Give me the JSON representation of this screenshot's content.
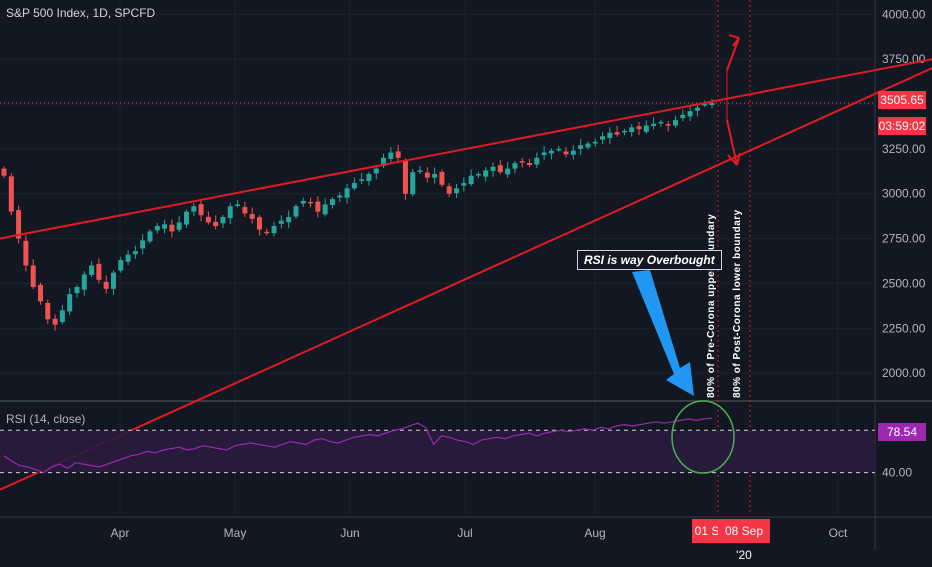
{
  "header": {
    "title": "S&P 500 Index, 1D, SPCFD"
  },
  "rsi_panel": {
    "title": "RSI (14, close)",
    "value_tag": "78.54",
    "level_label": "40.00"
  },
  "annotation": {
    "text": "RSI is way Overbought",
    "vertical_label_1": "80% of Pre-Corona upper boundary",
    "vertical_label_2": "80% of Post-Corona lower boundary"
  },
  "tags": {
    "last_price": "3505.65",
    "countdown": "03:59:02",
    "date_1": "01 S",
    "date_2": "08 Sep '20"
  },
  "colors": {
    "background": "#131722",
    "up": "#26a69a",
    "down": "#ef5350",
    "trendline": "#e01b24",
    "rsi_line": "#9c27b0",
    "arrow_blue": "#2196f3",
    "circle_green": "#4caf50"
  },
  "chart_data": [
    {
      "type": "candlestick",
      "y_ticks": [
        "4000.00",
        "3750.00",
        "3500.00",
        "3250.00",
        "3000.00",
        "2750.00",
        "2500.00",
        "2250.00",
        "2000.00"
      ],
      "ylim": [
        1850,
        4080
      ],
      "x_ticks": [
        "Apr",
        "May",
        "Jun",
        "Jul",
        "Aug",
        "Sep",
        "Oct"
      ],
      "closes": [
        3100,
        2900,
        2750,
        2600,
        2480,
        2400,
        2300,
        2270,
        2350,
        2440,
        2480,
        2550,
        2600,
        2520,
        2470,
        2560,
        2630,
        2660,
        2680,
        2740,
        2790,
        2820,
        2830,
        2790,
        2840,
        2900,
        2930,
        2880,
        2840,
        2820,
        2870,
        2930,
        2940,
        2890,
        2860,
        2800,
        2780,
        2820,
        2850,
        2870,
        2930,
        2960,
        2950,
        2900,
        2940,
        2970,
        2990,
        3030,
        3060,
        3080,
        3110,
        3140,
        3200,
        3230,
        3200,
        3000,
        3120,
        3130,
        3090,
        3110,
        3050,
        3000,
        3030,
        3060,
        3100,
        3110,
        3130,
        3150,
        3120,
        3140,
        3170,
        3180,
        3160,
        3200,
        3230,
        3240,
        3250,
        3220,
        3240,
        3270,
        3280,
        3290,
        3320,
        3340,
        3330,
        3350,
        3370,
        3360,
        3380,
        3390,
        3400,
        3380,
        3410,
        3440,
        3460,
        3480,
        3500,
        3505.65
      ],
      "trendlines": [
        {
          "from": [
            "start",
            2750
          ],
          "to": [
            "end",
            3750
          ]
        },
        {
          "from": [
            "start",
            1350
          ],
          "to": [
            "end",
            3700
          ]
        }
      ]
    },
    {
      "type": "line",
      "name": "RSI (14, close)",
      "y_ticks": [
        "40.00"
      ],
      "levels": [
        70,
        40
      ],
      "values": [
        52,
        48,
        45,
        44,
        42,
        40,
        44,
        46,
        43,
        47,
        46,
        45,
        44,
        46,
        48,
        50,
        52,
        53,
        55,
        54,
        56,
        57,
        58,
        56,
        57,
        59,
        58,
        57,
        56,
        59,
        60,
        61,
        60,
        59,
        58,
        60,
        62,
        61,
        60,
        63,
        64,
        62,
        61,
        63,
        65,
        66,
        67,
        66,
        68,
        70,
        71,
        73,
        75,
        72,
        60,
        66,
        65,
        63,
        62,
        60,
        63,
        64,
        65,
        64,
        66,
        67,
        68,
        66,
        68,
        69,
        70,
        69,
        70,
        71,
        70,
        72,
        71,
        73,
        74,
        73,
        74,
        75,
        76,
        75,
        76,
        77,
        78,
        77,
        78,
        78.54
      ]
    }
  ]
}
